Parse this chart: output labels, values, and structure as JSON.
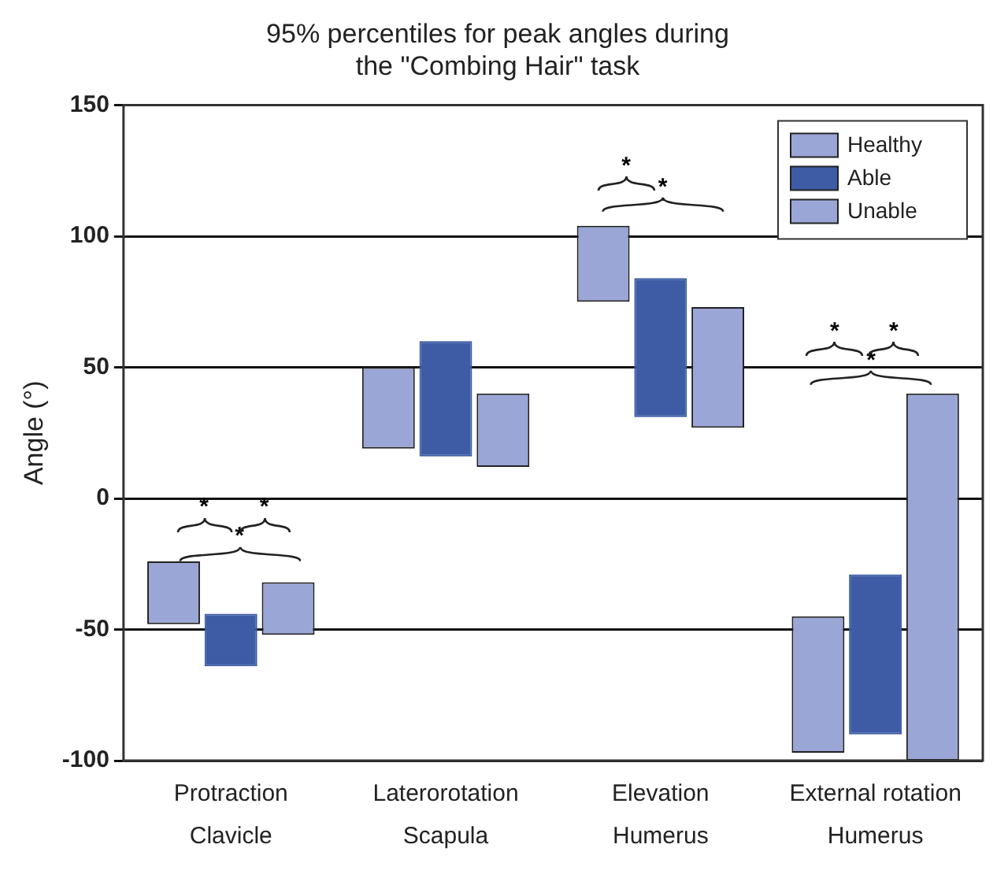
{
  "chart_data": {
    "type": "bar",
    "title": "95% percentiles for peak angles during\nthe \"Combing Hair\" task",
    "ylabel": "Angle (°)",
    "categories": [
      "Protraction\nClavicle",
      "Laterorotation\nScapula",
      "Elevation\nHumerus",
      "External rotation\nHumerus"
    ],
    "series": [
      {
        "name": "Healthy",
        "color": "#9aa6d6",
        "base": [
          -48,
          19,
          75,
          -97
        ],
        "values": [
          24,
          31,
          29,
          52
        ]
      },
      {
        "name": "Able",
        "color": "#3d5ca5",
        "base": [
          -64,
          16,
          31,
          -90
        ],
        "values": [
          20,
          44,
          53,
          61
        ]
      },
      {
        "name": "Unable",
        "color": "#9aa6d6",
        "base": [
          -52,
          12,
          27,
          -100
        ],
        "values": [
          20,
          28,
          46,
          140
        ]
      }
    ],
    "ylim": [
      -100,
      150
    ],
    "yticks": [
      -100,
      -50,
      0,
      50,
      100,
      150
    ],
    "grid": "y",
    "legend": "top right",
    "annotations": [
      "*",
      "*",
      "*",
      "*",
      "*",
      "*",
      "*",
      "*"
    ]
  }
}
